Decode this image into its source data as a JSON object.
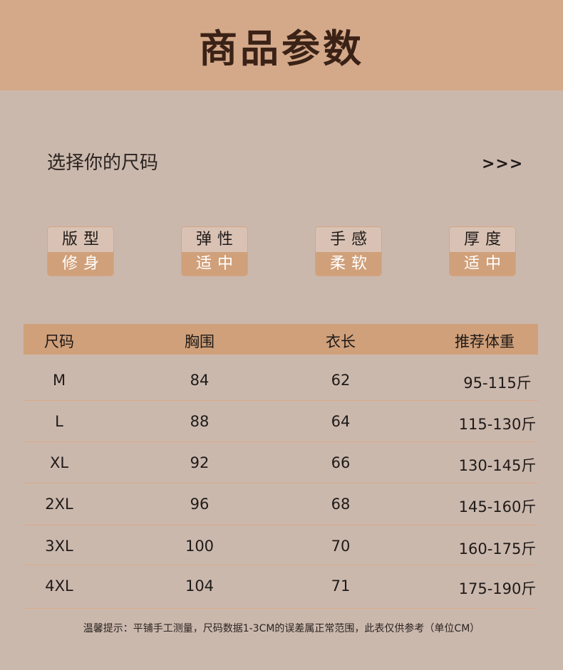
{
  "title": "商品参数",
  "subtitle": "选择你的尺码",
  "arrows": ">>>",
  "tags": [
    {
      "label": "版型",
      "value": "修身"
    },
    {
      "label": "弹性",
      "value": "适中"
    },
    {
      "label": "手感",
      "value": "柔软"
    },
    {
      "label": "厚度",
      "value": "适中"
    }
  ],
  "table": {
    "headers": [
      "尺码",
      "胸围",
      "衣长",
      "推荐体重"
    ],
    "rows": [
      [
        "M",
        "84",
        "62",
        "95-115斤"
      ],
      [
        "L",
        "88",
        "64",
        "115-130斤"
      ],
      [
        "XL",
        "92",
        "66",
        "130-145斤"
      ],
      [
        "2XL",
        "96",
        "68",
        "145-160斤"
      ],
      [
        "3XL",
        "100",
        "70",
        "160-175斤"
      ],
      [
        "4XL",
        "104",
        "71",
        "175-190斤"
      ]
    ]
  },
  "note": "温馨提示：平铺手工测量，尺码数据1-3CM的误差属正常范围，此表仅供参考（单位CM）",
  "colors": {
    "banner": "#d4a98a",
    "background": "#cbb8ad",
    "accent": "#d0a07a"
  }
}
